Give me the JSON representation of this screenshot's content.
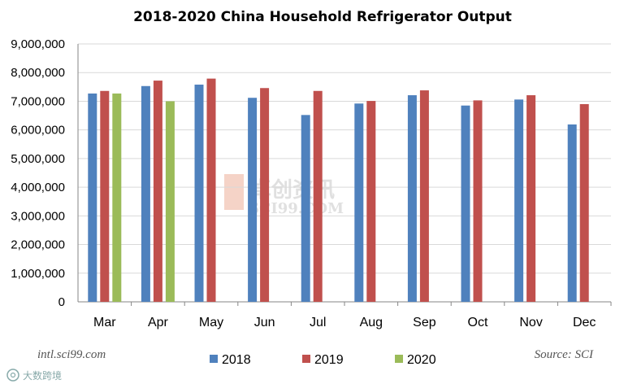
{
  "chart_data": {
    "type": "bar",
    "title": "2018-2020 China Household Refrigerator Output",
    "xlabel": "",
    "ylabel": "",
    "ylim": [
      0,
      9000000
    ],
    "yticks": [
      0,
      1000000,
      2000000,
      3000000,
      4000000,
      5000000,
      6000000,
      7000000,
      8000000,
      9000000
    ],
    "ytick_labels": [
      "0",
      "1,000,000",
      "2,000,000",
      "3,000,000",
      "4,000,000",
      "5,000,000",
      "6,000,000",
      "7,000,000",
      "8,000,000",
      "9,000,000"
    ],
    "grid": true,
    "legend": "bottom",
    "categories": [
      "Mar",
      "Apr",
      "May",
      "Jun",
      "Jul",
      "Aug",
      "Sep",
      "Oct",
      "Nov",
      "Dec"
    ],
    "series": [
      {
        "name": "2018",
        "color": "#4f81bd",
        "values": [
          7270000,
          7530000,
          7580000,
          7120000,
          6520000,
          6920000,
          7210000,
          6850000,
          7060000,
          6190000
        ]
      },
      {
        "name": "2019",
        "color": "#c0504d",
        "values": [
          7360000,
          7720000,
          7790000,
          7460000,
          7360000,
          7010000,
          7380000,
          7030000,
          7210000,
          6900000
        ]
      },
      {
        "name": "2020",
        "color": "#9bbb59",
        "values": [
          7270000,
          7000000,
          null,
          null,
          null,
          null,
          null,
          null,
          null,
          null
        ]
      }
    ]
  },
  "annotations": {
    "left_note": "intl.sci99.com",
    "source_note": "Source: SCI"
  },
  "watermark": {
    "text_cn": "卓创资讯",
    "text_en": "SCI99.COM"
  },
  "corner_badge": {
    "text": "大数跨境",
    "icon": "at-sign-icon"
  },
  "colors": {
    "grid": "#d9d9d9",
    "axis": "#868686"
  }
}
